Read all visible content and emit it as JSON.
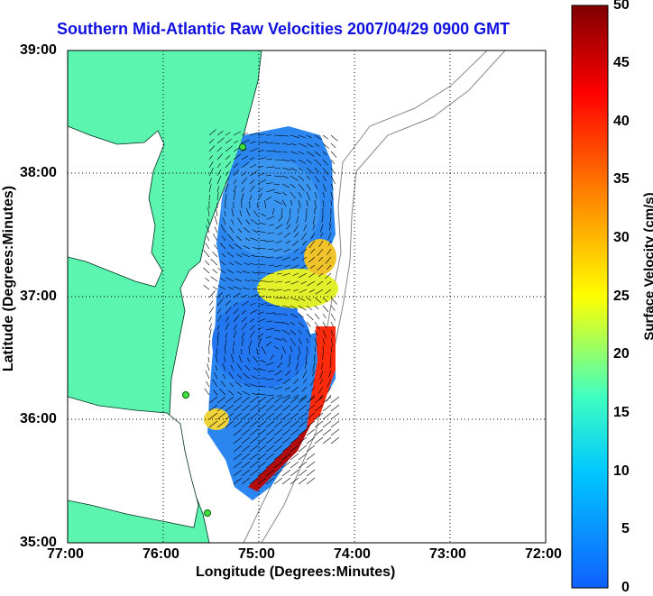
{
  "title": "Southern Mid-Atlantic Raw Velocities 2007/04/29 0900 GMT",
  "x_axis": {
    "label": "Longitude (Degrees:Minutes)",
    "ticks": [
      "77:00",
      "76:00",
      "75:00",
      "74:00",
      "73:00",
      "72:00"
    ]
  },
  "y_axis": {
    "label": "Latitude (Degrees:Minutes)",
    "ticks": [
      "39:00",
      "38:00",
      "37:00",
      "36:00",
      "35:00"
    ]
  },
  "colorbar": {
    "label": "Surface Velocity (cm/s)",
    "ticks": [
      "50",
      "45",
      "40",
      "35",
      "30",
      "25",
      "20",
      "15",
      "10",
      "5",
      "0"
    ],
    "range": [
      0,
      50
    ],
    "colors": [
      "#1060ff",
      "#00c8ff",
      "#40ffc0",
      "#ffff00",
      "#ff8000",
      "#ff0000",
      "#800000"
    ]
  },
  "map": {
    "extent": {
      "lon": [
        -77,
        -72
      ],
      "lat": [
        35,
        39
      ]
    },
    "land_color": "#5cf5b0",
    "grid": "dotted"
  }
}
